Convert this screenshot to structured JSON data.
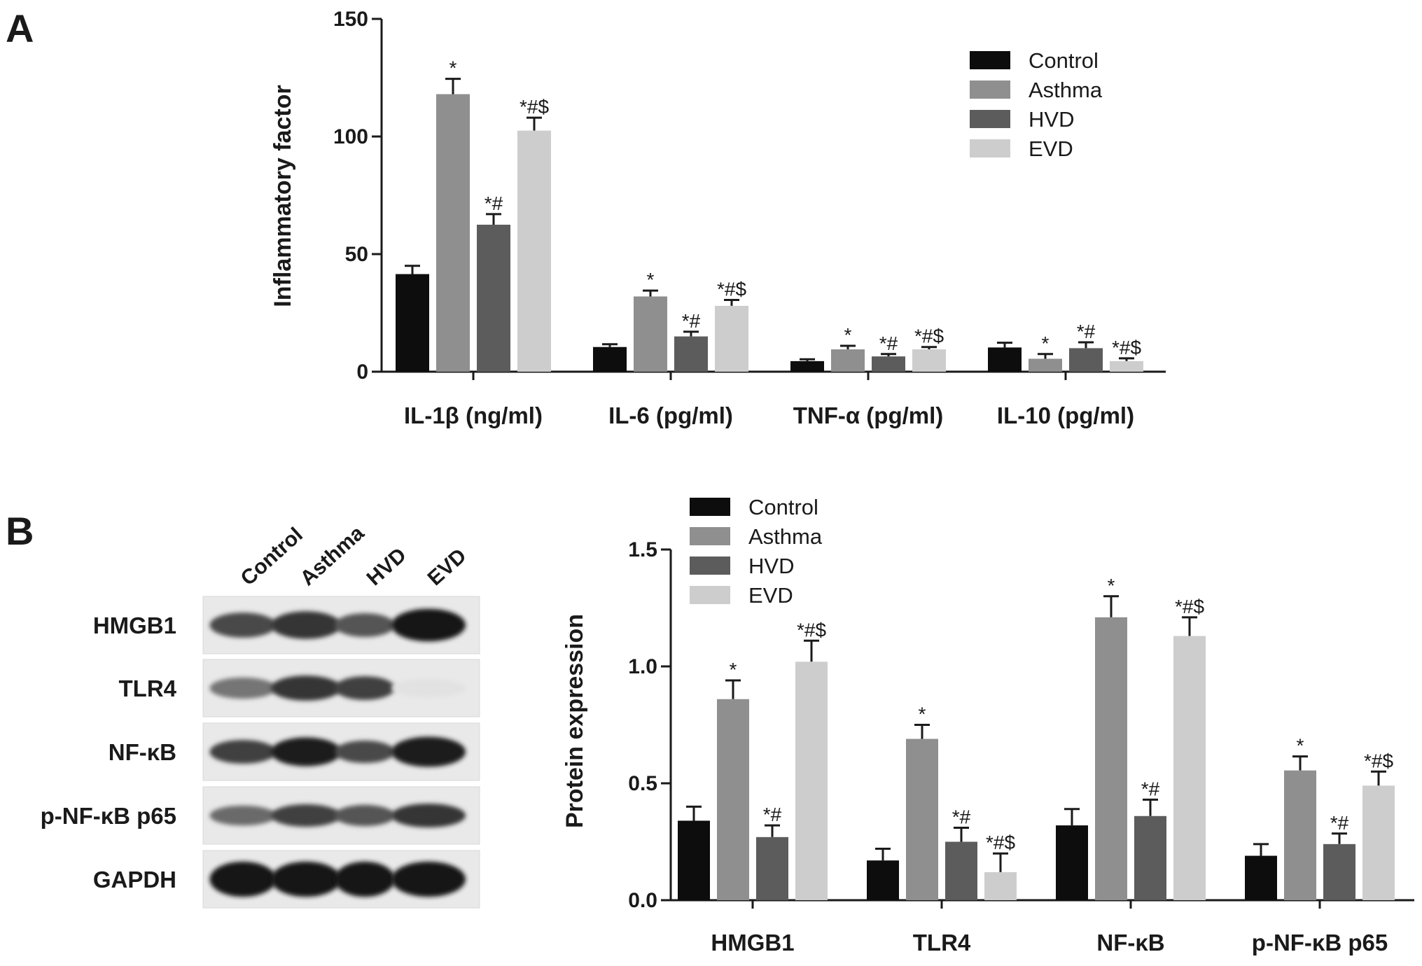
{
  "panels": {
    "a_label": "A",
    "b_label": "B"
  },
  "colors": {
    "Control": "#0d0d0d",
    "Asthma": "#8f8f8f",
    "HVD": "#5c5c5c",
    "EVD": "#cdcdcd"
  },
  "chart_data": [
    {
      "type": "bar",
      "panel": "A",
      "title": "",
      "xlabel": "",
      "ylabel": "Inflammatory factor",
      "ylim": [
        0,
        150
      ],
      "yticks": [
        "0",
        "50",
        "100",
        "150"
      ],
      "ytick_values": [
        0,
        50,
        100,
        150
      ],
      "categories": [
        "IL-1β (ng/ml)",
        "IL-6 (pg/ml)",
        "TNF-α (pg/ml)",
        "IL-10 (pg/ml)"
      ],
      "legend": "top-right",
      "grid": false,
      "series": [
        {
          "name": "Control",
          "values": [
            41.5,
            10.5,
            4.5,
            10.3
          ],
          "errors": [
            3.5,
            1.2,
            0.8,
            2.0
          ],
          "labels": [
            "",
            "",
            "",
            ""
          ]
        },
        {
          "name": "Asthma",
          "values": [
            118,
            32,
            9.5,
            5.5
          ],
          "errors": [
            6.5,
            2.5,
            1.5,
            2.0
          ],
          "labels": [
            "*",
            "*",
            "*",
            "*"
          ]
        },
        {
          "name": "HVD",
          "values": [
            62.5,
            15,
            6.5,
            10
          ],
          "errors": [
            4.5,
            2.0,
            1.0,
            2.5
          ],
          "labels": [
            "*#",
            "*#",
            "*#",
            "*#"
          ]
        },
        {
          "name": "EVD",
          "values": [
            102.5,
            28,
            9.5,
            4.5
          ],
          "errors": [
            5.5,
            2.5,
            1.0,
            1.2
          ],
          "labels": [
            "*#$",
            "*#$",
            "*#$",
            "*#$"
          ]
        }
      ]
    },
    {
      "type": "bar",
      "panel": "B",
      "title": "",
      "xlabel": "",
      "ylabel": "Protein expression",
      "ylim": [
        0,
        1.5
      ],
      "yticks": [
        "0.0",
        "0.5",
        "1.0",
        "1.5"
      ],
      "ytick_values": [
        0,
        0.5,
        1.0,
        1.5
      ],
      "categories": [
        "HMGB1",
        "TLR4",
        "NF-κB",
        "p-NF-κB p65"
      ],
      "legend": "top-left",
      "grid": false,
      "series": [
        {
          "name": "Control",
          "values": [
            0.34,
            0.17,
            0.32,
            0.19
          ],
          "errors": [
            0.06,
            0.05,
            0.07,
            0.05
          ],
          "labels": [
            "",
            "",
            "",
            ""
          ]
        },
        {
          "name": "Asthma",
          "values": [
            0.86,
            0.69,
            1.21,
            0.555
          ],
          "errors": [
            0.08,
            0.06,
            0.09,
            0.06
          ],
          "labels": [
            "*",
            "*",
            "*",
            "*"
          ]
        },
        {
          "name": "HVD",
          "values": [
            0.27,
            0.25,
            0.36,
            0.24
          ],
          "errors": [
            0.05,
            0.06,
            0.07,
            0.045
          ],
          "labels": [
            "*#",
            "*#",
            "*#",
            "*#"
          ]
        },
        {
          "name": "EVD",
          "values": [
            1.02,
            0.12,
            1.13,
            0.49
          ],
          "errors": [
            0.09,
            0.08,
            0.08,
            0.06
          ],
          "labels": [
            "*#$",
            "*#$",
            "*#$",
            "*#$"
          ]
        }
      ]
    }
  ],
  "western_blot": {
    "lanes": [
      "Control",
      "Asthma",
      "HVD",
      "EVD"
    ],
    "rows": [
      {
        "label": "HMGB1",
        "intensity": [
          0.75,
          0.85,
          0.7,
          1.0
        ],
        "thickness": [
          0.55,
          0.65,
          0.5,
          0.85
        ]
      },
      {
        "label": "TLR4",
        "intensity": [
          0.55,
          0.85,
          0.8,
          0.04
        ],
        "thickness": [
          0.4,
          0.55,
          0.5,
          0.3
        ]
      },
      {
        "label": "NF-κB",
        "intensity": [
          0.8,
          0.95,
          0.75,
          0.95
        ],
        "thickness": [
          0.5,
          0.7,
          0.45,
          0.75
        ]
      },
      {
        "label": "p-NF-κB p65",
        "intensity": [
          0.6,
          0.8,
          0.7,
          0.85
        ],
        "thickness": [
          0.35,
          0.45,
          0.4,
          0.5
        ]
      },
      {
        "label": "GAPDH",
        "intensity": [
          1.0,
          1.0,
          1.0,
          1.0
        ],
        "thickness": [
          0.95,
          0.95,
          0.95,
          0.95
        ]
      }
    ]
  }
}
